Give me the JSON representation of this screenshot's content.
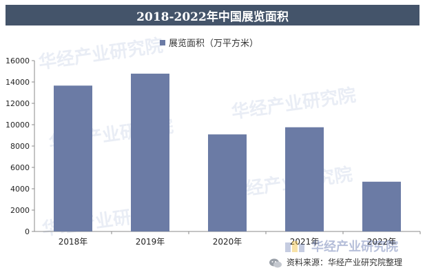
{
  "title": "2018-2022年中国展览面积",
  "watermark_text": "华经产业研究院",
  "brand": {
    "name": "华经产业研究院",
    "logo_icon": "hj-logo-icon"
  },
  "source": "资料来源：华经产业研究院整理",
  "colors": {
    "bar": "#6b7ba5",
    "title_bg": "#44546a",
    "axis": "#888888"
  },
  "chart_data": {
    "type": "bar",
    "title": "2018-2022年中国展览面积",
    "categories": [
      "2018年",
      "2019年",
      "2020年",
      "2021年",
      "2022年"
    ],
    "series": [
      {
        "name": "展览面积（万平方米）",
        "values": [
          13660,
          14780,
          9090,
          9760,
          4660
        ]
      }
    ],
    "ylim": [
      0,
      16000
    ],
    "yticks": [
      0,
      2000,
      4000,
      6000,
      8000,
      10000,
      12000,
      14000,
      16000
    ],
    "grid": false,
    "legend": "top-center",
    "xlabel": "",
    "ylabel": ""
  }
}
